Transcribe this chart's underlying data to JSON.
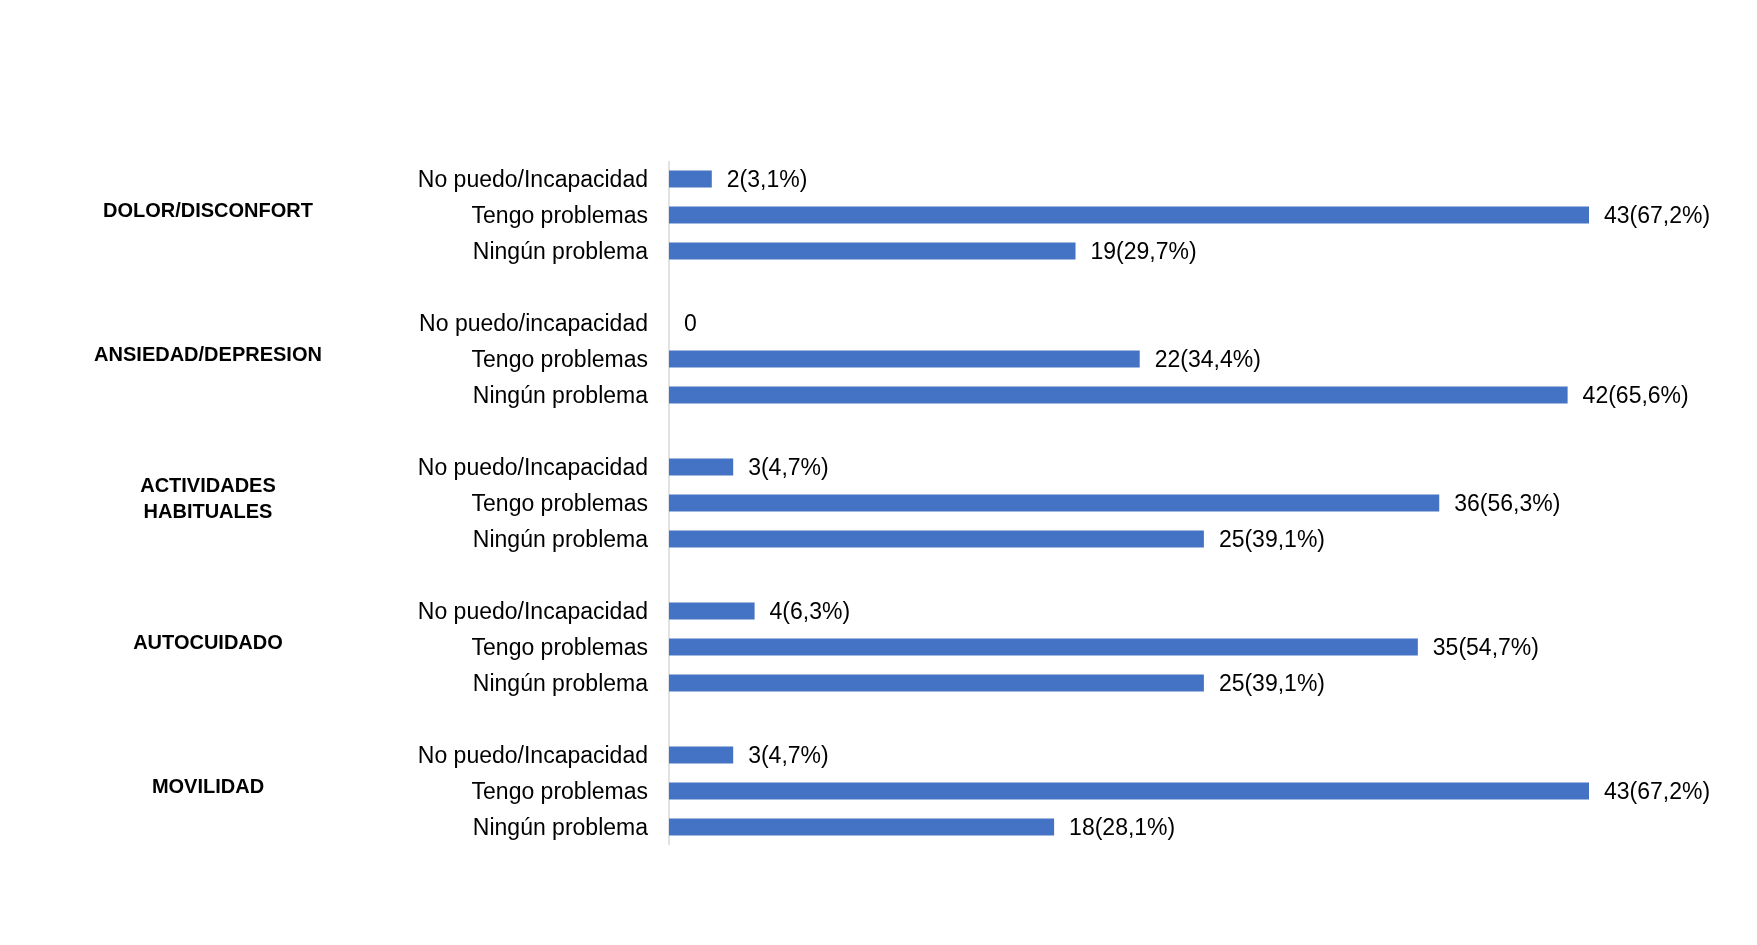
{
  "chart_data": {
    "type": "bar",
    "orientation": "horizontal",
    "categories": [
      "No puedo/Incapacidad",
      "Tengo problemas",
      "Ningún problema",
      "No puedo/incapacidad",
      "Tengo problemas",
      "Ningún problema",
      "No puedo/Incapacidad",
      "Tengo problemas",
      "Ningún problema",
      "No puedo/Incapacidad",
      "Tengo problemas",
      "Ningún problema",
      "No puedo/Incapacidad",
      "Tengo problemas",
      "Ningún problema"
    ],
    "values": [
      2,
      43,
      19,
      0,
      22,
      42,
      3,
      36,
      25,
      4,
      35,
      25,
      3,
      43,
      18
    ],
    "value_labels": [
      "2(3,1%)",
      "43(67,2%)",
      "19(29,7%)",
      "0",
      "22(34,4%)",
      "42(65,6%)",
      "3(4,7%)",
      "36(56,3%)",
      "25(39,1%)",
      "4(6,3%)",
      "35(54,7%)",
      "25(39,1%)",
      "3(4,7%)",
      "43(67,2%)",
      "18(28,1%)"
    ],
    "color": "#4472c4",
    "annotations": [
      "DOLOR/DISCONFORT",
      "ANSIEDAD/DEPRESION",
      "ACTIVIDADES HABITUALES",
      "AUTOCUIDADO",
      "MOVILIDAD"
    ]
  }
}
